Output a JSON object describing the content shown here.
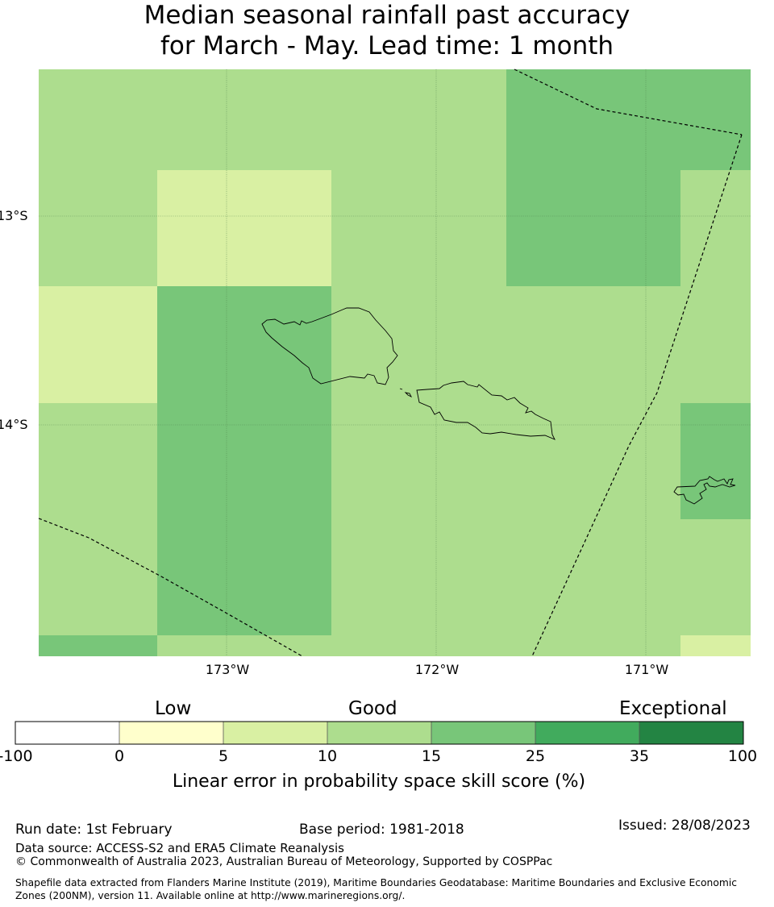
{
  "title": {
    "line1": "Median seasonal rainfall past accuracy",
    "line2": "for March - May. Lead time: 1 month"
  },
  "map": {
    "lat_labels": [
      "13°S",
      "14°S"
    ],
    "lon_labels": [
      "173°W",
      "172°W",
      "171°W"
    ],
    "grid_cell_values_pct_skill_class": [
      [
        "10-15",
        "10-15",
        "10-15",
        "15-25",
        "15-25"
      ],
      [
        "10-15",
        "5-10",
        "10-15",
        "15-25",
        "10-15"
      ],
      [
        "5-10",
        "15-25",
        "10-15",
        "10-15",
        "10-15"
      ],
      [
        "10-15",
        "15-25",
        "10-15",
        "10-15",
        "15-25"
      ],
      [
        "10-15",
        "15-25",
        "10-15",
        "10-15",
        "10-15"
      ],
      [
        "15-25",
        "10-15",
        "10-15",
        "10-15",
        "5-10"
      ]
    ],
    "features": [
      "Upolu island outline",
      "Savai'i island outline",
      "Tutuila island outline",
      "EEZ boundary dashed lines"
    ]
  },
  "colorbar": {
    "categories": [
      "Low",
      "Good",
      "Exceptional"
    ],
    "ticks": [
      "-100",
      "0",
      "5",
      "10",
      "15",
      "25",
      "35",
      "100"
    ],
    "colors": [
      "#ffffff",
      "#ffffcc",
      "#d9f0a3",
      "#addd8e",
      "#78c679",
      "#41ab5d",
      "#238443"
    ],
    "label": "Linear error in probability space skill score (%)"
  },
  "footer": {
    "run_date": "Run date: 1st February",
    "base_period": "Base period: 1981-2018",
    "issued": "Issued: 28/08/2023",
    "data_source": "Data source: ACCESS-S2 and ERA5 Climate Reanalysis",
    "copyright": "© Commonwealth of Australia 2023, Australian Bureau of Meteorology, Supported by COSPPac",
    "shapefile": "Shapefile data extracted from Flanders Marine Institute (2019), Maritime Boundaries Geodatabase: Maritime Boundaries and Exclusive Economic Zones (200NM), version 11. Available online at http://www.marineregions.org/."
  }
}
